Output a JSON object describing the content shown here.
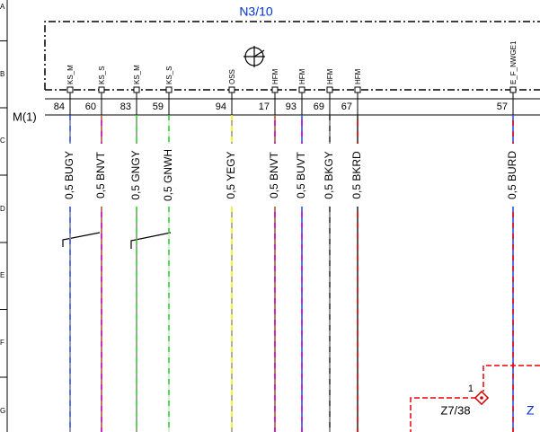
{
  "connector": {
    "label": "N3/10",
    "plug": "M(1)",
    "pins": [
      {
        "name": "KS_M",
        "number": 84,
        "wire": "0,5 BUGY"
      },
      {
        "name": "KS_S",
        "number": 60,
        "wire": "0,5 BNVT"
      },
      {
        "name": "KS_M",
        "number": 83,
        "wire": "0,5 GNGY"
      },
      {
        "name": "KS_S",
        "number": 59,
        "wire": "0,5 GNWH"
      },
      {
        "name": "OSS",
        "number": 94,
        "wire": "0,5 YEGY"
      },
      {
        "name": "HFM",
        "number": 17,
        "wire": "0,5 BNVT"
      },
      {
        "name": "HFM",
        "number": 93,
        "wire": "0,5 BUVT"
      },
      {
        "name": "HFM",
        "number": 69,
        "wire": "0,5 BKGY"
      },
      {
        "name": "HFM",
        "number": 67,
        "wire": "0,5 BKRD"
      },
      {
        "name": "E_F_NWGE1",
        "number": 57,
        "wire": "0,5 BURD"
      }
    ]
  },
  "margin": [
    "A",
    "B",
    "C",
    "D",
    "E",
    "F",
    "G"
  ],
  "splice": {
    "pin": "1",
    "label": "Z7/38",
    "ref": "Z"
  }
}
